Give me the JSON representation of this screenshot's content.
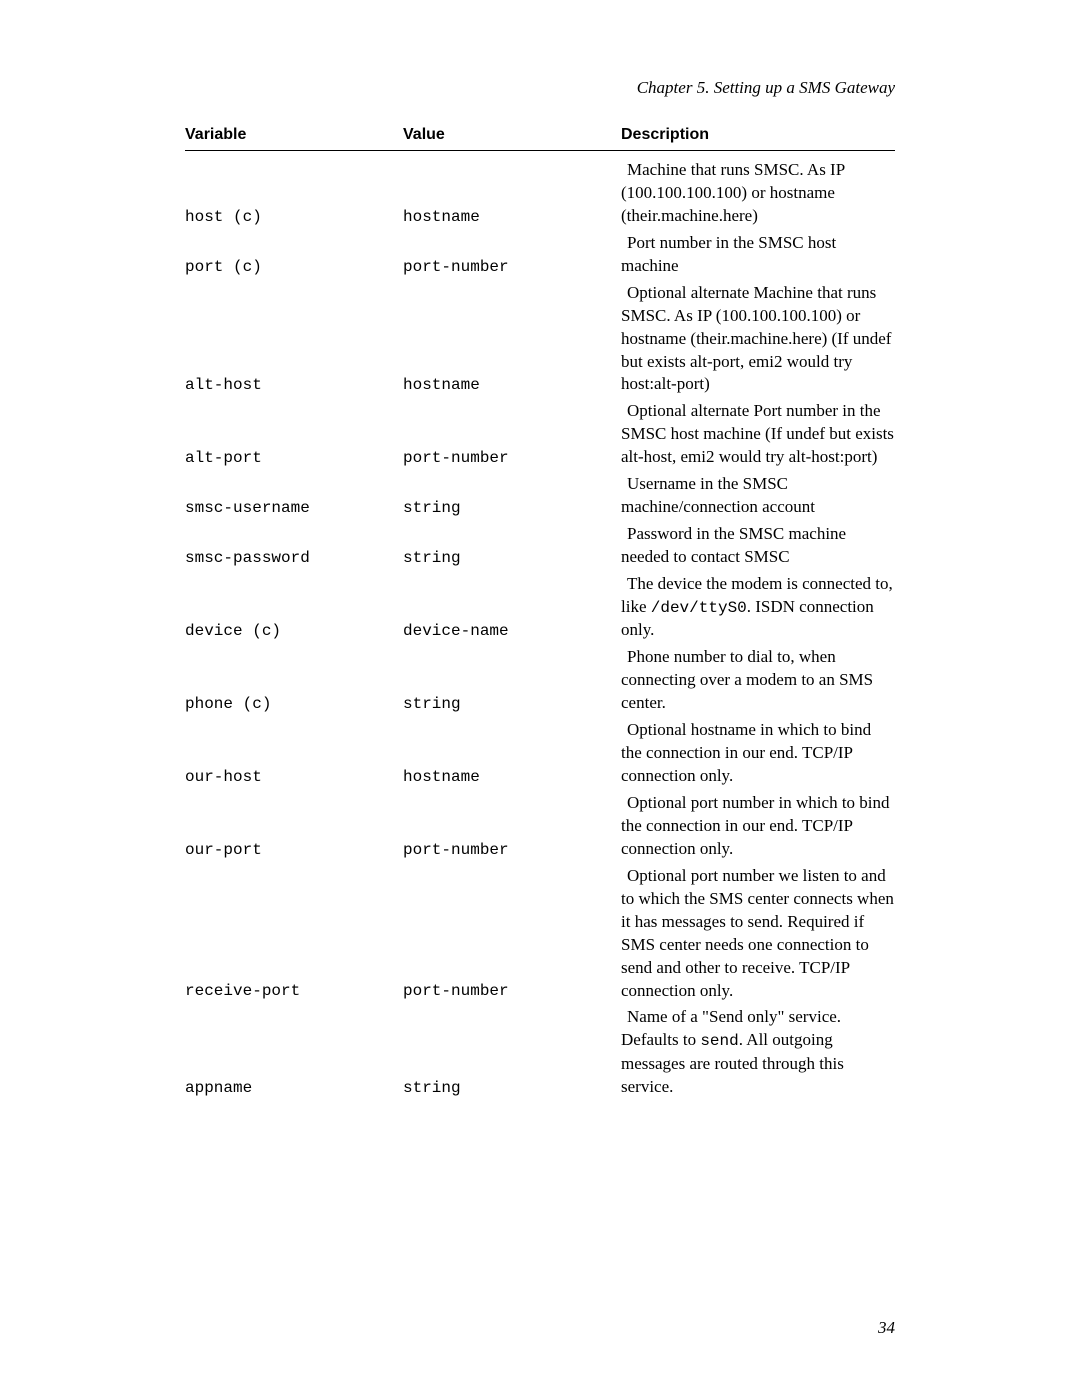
{
  "chapter_header": "Chapter 5. Setting up a SMS Gateway",
  "page_number": "34",
  "headers": {
    "variable": "Variable",
    "value": "Value",
    "description": "Description"
  },
  "rows": [
    {
      "variable": "host (c)",
      "value": "hostname",
      "description_parts": [
        {
          "type": "text",
          "content": "Machine that runs SMSC. As IP (100.100.100.100) or hostname (their.machine.here)"
        }
      ]
    },
    {
      "variable": "port (c)",
      "value": "port-number",
      "description_parts": [
        {
          "type": "text",
          "content": "Port number in the SMSC host machine"
        }
      ]
    },
    {
      "variable": "alt-host",
      "value": "hostname",
      "description_parts": [
        {
          "type": "text",
          "content": "Optional alternate Machine that runs SMSC. As IP (100.100.100.100) or hostname (their.machine.here) (If undef but exists alt-port, emi2 would try host:alt-port)"
        }
      ]
    },
    {
      "variable": "alt-port",
      "value": "port-number",
      "description_parts": [
        {
          "type": "text",
          "content": "Optional alternate Port number in the SMSC host machine (If undef but exists alt-host, emi2 would try alt-host:port)"
        }
      ]
    },
    {
      "variable": "smsc-username",
      "value": "string",
      "description_parts": [
        {
          "type": "text",
          "content": "Username in the SMSC machine/connection account"
        }
      ]
    },
    {
      "variable": "smsc-password",
      "value": "string",
      "description_parts": [
        {
          "type": "text",
          "content": "Password in the SMSC machine needed to contact SMSC"
        }
      ]
    },
    {
      "variable": "device (c)",
      "value": "device-name",
      "description_parts": [
        {
          "type": "text",
          "content": "The device the modem is connected to, like "
        },
        {
          "type": "code",
          "content": "/dev/ttyS0"
        },
        {
          "type": "text",
          "content": ". ISDN connection only."
        }
      ]
    },
    {
      "variable": "phone (c)",
      "value": "string",
      "description_parts": [
        {
          "type": "text",
          "content": "Phone number to dial to, when connecting over a modem to an SMS center."
        }
      ]
    },
    {
      "variable": "our-host",
      "value": "hostname",
      "description_parts": [
        {
          "type": "text",
          "content": "Optional hostname in which to bind the connection in our end. TCP/IP connection only."
        }
      ]
    },
    {
      "variable": "our-port",
      "value": "port-number",
      "description_parts": [
        {
          "type": "text",
          "content": "Optional port number in which to bind the connection in our end. TCP/IP connection only."
        }
      ]
    },
    {
      "variable": "receive-port",
      "value": "port-number",
      "description_parts": [
        {
          "type": "text",
          "content": "Optional port number we listen to and to which the SMS center connects when it has messages to send. Required if SMS center needs one connection to send and other to receive. TCP/IP connection only."
        }
      ]
    },
    {
      "variable": "appname",
      "value": "string",
      "description_parts": [
        {
          "type": "text",
          "content": "Name of a \"Send only\" service. Defaults to "
        },
        {
          "type": "code",
          "content": "send"
        },
        {
          "type": "text",
          "content": ". All outgoing messages are routed through this service."
        }
      ]
    }
  ]
}
